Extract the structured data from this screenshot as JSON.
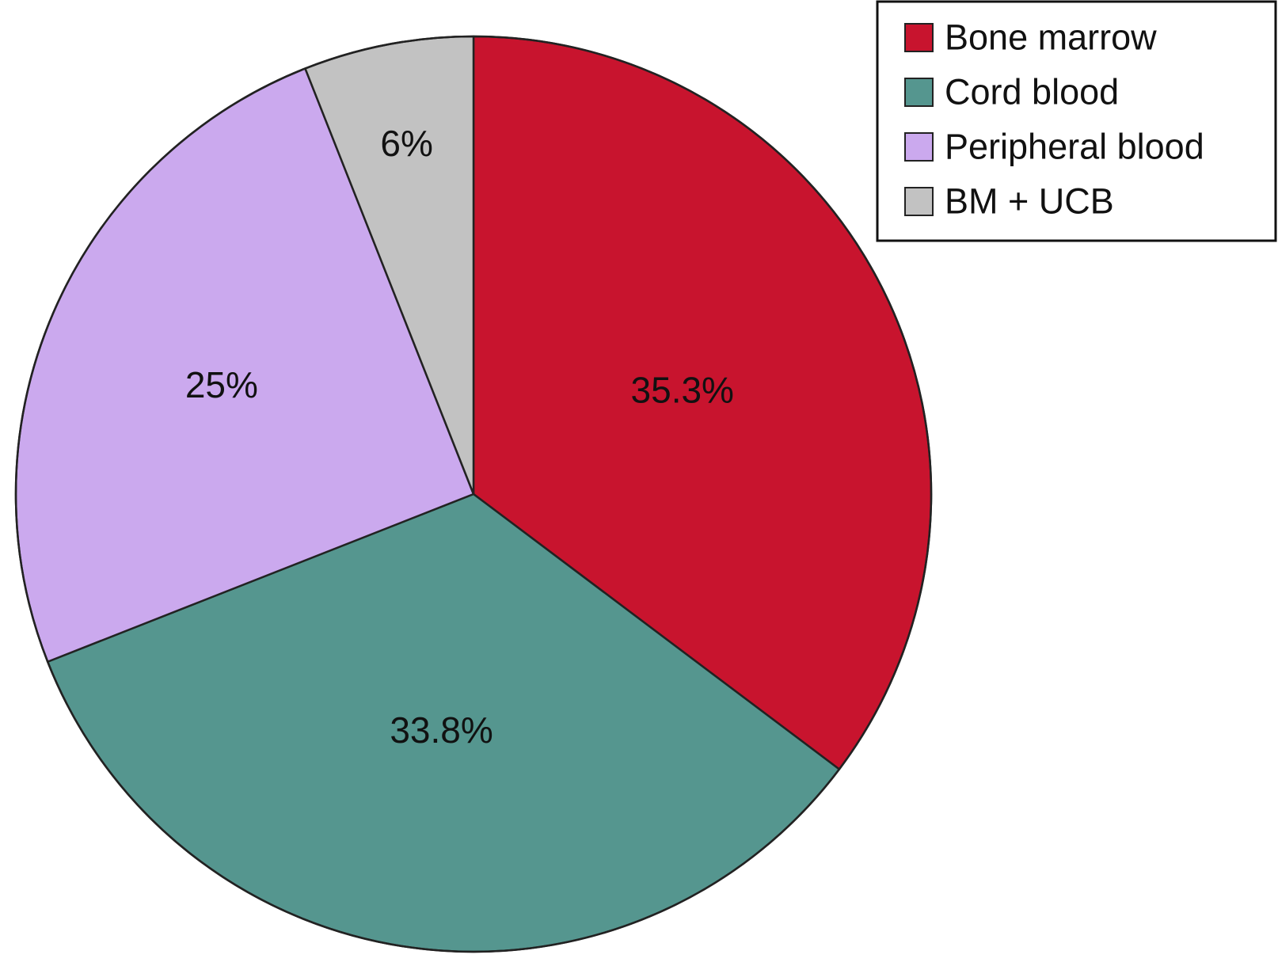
{
  "chart_data": {
    "type": "pie",
    "title": "",
    "start_angle_deg": 0,
    "direction": "clockwise",
    "legend_position": "top-right",
    "slices": [
      {
        "name": "Bone marrow",
        "value": 35.3,
        "label": "35.3%",
        "color": "#C8142E"
      },
      {
        "name": "Cord blood",
        "value": 33.8,
        "label": "33.8%",
        "color": "#55968F"
      },
      {
        "name": "Peripheral blood",
        "value": 25,
        "label": "25%",
        "color": "#CBA9EE"
      },
      {
        "name": "BM + UCB",
        "value": 6,
        "label": "6%",
        "color": "#C2C2C2"
      }
    ]
  }
}
